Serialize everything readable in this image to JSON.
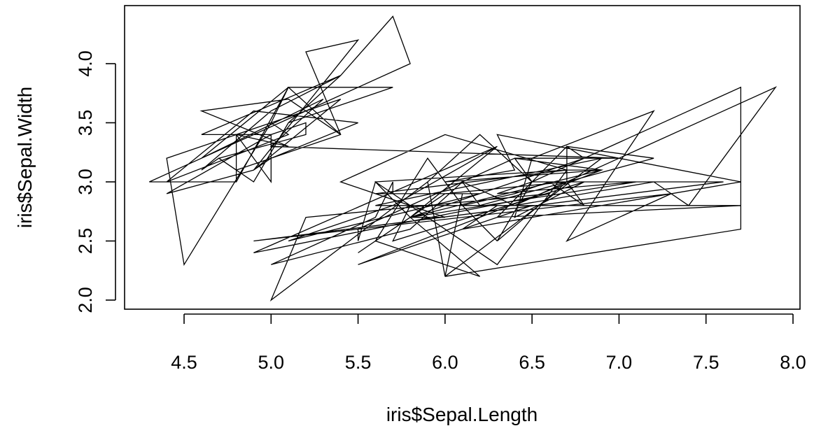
{
  "chart_data": {
    "type": "line",
    "title": "",
    "xlabel": "iris$Sepal.Length",
    "ylabel": "iris$Sepal.Width",
    "xlim": [
      4.3,
      7.9
    ],
    "ylim": [
      2.0,
      4.4
    ],
    "x_ticks": [
      4.5,
      5.0,
      5.5,
      6.0,
      6.5,
      7.0,
      7.5,
      8.0
    ],
    "x_tick_labels": [
      "4.5",
      "5.0",
      "5.5",
      "6.0",
      "6.5",
      "7.0",
      "7.5",
      "8.0"
    ],
    "y_ticks": [
      2.0,
      2.5,
      3.0,
      3.5,
      4.0
    ],
    "y_tick_labels": [
      "2.0",
      "2.5",
      "3.0",
      "3.5",
      "4.0"
    ],
    "grid": false,
    "series": [
      {
        "color": "#000000",
        "x": [
          5.1,
          4.9,
          4.7,
          4.6,
          5.0,
          5.4,
          4.6,
          5.0,
          4.4,
          4.9,
          5.4,
          4.8,
          4.8,
          4.3,
          5.8,
          5.7,
          5.4,
          5.1,
          5.7,
          5.1,
          5.4,
          5.1,
          4.6,
          5.1,
          4.8,
          5.0,
          5.0,
          5.2,
          5.2,
          4.7,
          4.8,
          5.4,
          5.2,
          5.5,
          4.9,
          5.0,
          5.5,
          4.9,
          4.4,
          5.1,
          5.0,
          4.5,
          4.4,
          5.0,
          5.1,
          4.8,
          5.1,
          4.6,
          5.3,
          5.0,
          7.0,
          6.4,
          6.9,
          5.5,
          6.5,
          5.7,
          6.3,
          4.9,
          6.6,
          5.2,
          5.0,
          5.9,
          6.0,
          6.1,
          5.6,
          6.7,
          5.6,
          5.8,
          6.2,
          5.6,
          5.9,
          6.1,
          6.3,
          6.1,
          6.4,
          6.6,
          6.8,
          6.7,
          6.0,
          5.7,
          5.5,
          5.5,
          5.8,
          6.0,
          5.4,
          6.0,
          6.7,
          6.3,
          5.6,
          5.5,
          5.5,
          6.1,
          5.8,
          5.0,
          5.6,
          5.7,
          5.7,
          6.2,
          5.1,
          5.7,
          6.3,
          5.8,
          7.1,
          6.3,
          6.5,
          7.6,
          4.9,
          7.3,
          6.7,
          7.2,
          6.5,
          6.4,
          6.8,
          5.7,
          5.8,
          6.4,
          6.5,
          7.7,
          7.7,
          6.0,
          6.9,
          5.6,
          7.7,
          6.3,
          6.7,
          7.2,
          6.2,
          6.1,
          6.4,
          7.2,
          7.4,
          7.9,
          6.4,
          6.3,
          6.1,
          7.7,
          6.3,
          6.4,
          6.0,
          6.9,
          6.7,
          6.9,
          5.8,
          6.8,
          6.7,
          6.7,
          6.3,
          6.5,
          6.2,
          5.9
        ],
        "y": [
          3.5,
          3.0,
          3.2,
          3.1,
          3.6,
          3.9,
          3.4,
          3.4,
          2.9,
          3.1,
          3.7,
          3.4,
          3.0,
          3.0,
          4.0,
          4.4,
          3.9,
          3.5,
          3.8,
          3.8,
          3.4,
          3.7,
          3.6,
          3.3,
          3.4,
          3.0,
          3.4,
          3.5,
          3.4,
          3.2,
          3.1,
          3.4,
          4.1,
          4.2,
          3.1,
          3.2,
          3.5,
          3.6,
          3.0,
          3.4,
          3.5,
          2.3,
          3.2,
          3.5,
          3.8,
          3.0,
          3.8,
          3.2,
          3.7,
          3.3,
          3.2,
          3.2,
          3.1,
          2.3,
          2.8,
          2.8,
          3.3,
          2.4,
          2.9,
          2.7,
          2.0,
          3.0,
          2.2,
          2.9,
          2.9,
          3.1,
          3.0,
          2.7,
          2.2,
          2.5,
          3.2,
          2.8,
          2.5,
          2.8,
          2.9,
          3.0,
          2.8,
          3.0,
          2.9,
          2.6,
          2.4,
          2.4,
          2.7,
          2.7,
          3.0,
          3.4,
          3.1,
          2.3,
          3.0,
          2.5,
          2.6,
          3.0,
          2.6,
          2.3,
          2.7,
          3.0,
          2.9,
          2.9,
          2.5,
          2.8,
          3.3,
          2.7,
          3.0,
          2.9,
          3.0,
          3.0,
          2.5,
          2.9,
          2.5,
          3.6,
          3.2,
          2.7,
          3.0,
          2.5,
          2.8,
          3.2,
          3.0,
          3.8,
          2.6,
          2.2,
          3.2,
          2.8,
          2.8,
          2.7,
          3.3,
          3.2,
          2.8,
          3.0,
          2.8,
          3.0,
          2.8,
          3.8,
          2.8,
          2.8,
          2.6,
          3.0,
          3.4,
          3.1,
          3.0,
          3.1,
          3.1,
          3.1,
          2.7,
          3.2,
          3.3,
          3.0,
          2.5,
          3.0,
          3.4,
          3.0
        ]
      }
    ]
  }
}
